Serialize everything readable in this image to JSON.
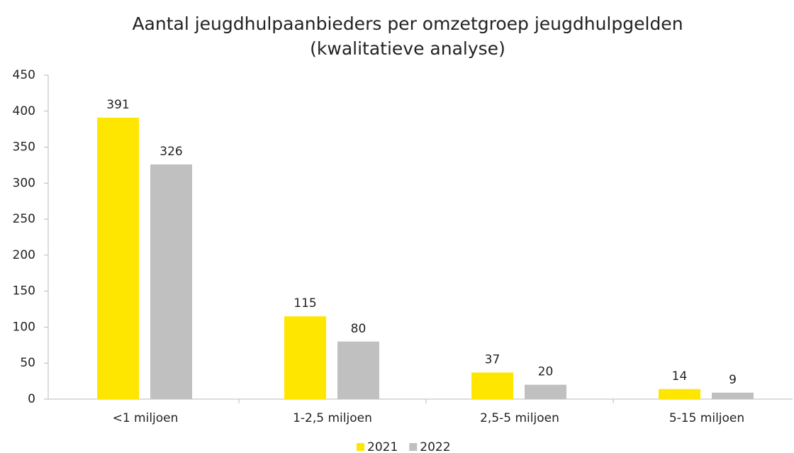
{
  "chart_data": {
    "type": "bar",
    "title": [
      "Aantal jeugdhulpaanbieders per omzetgroep jeugdhulpgelden",
      "(kwalitatieve analyse)"
    ],
    "categories": [
      "<1 miljoen",
      "1-2,5 miljoen",
      "2,5-5 miljoen",
      "5-15 miljoen"
    ],
    "series": [
      {
        "name": "2021",
        "color": "#ffe600",
        "values": [
          391,
          115,
          37,
          14
        ]
      },
      {
        "name": "2022",
        "color": "#c0c0c0",
        "values": [
          326,
          80,
          20,
          9
        ]
      }
    ],
    "ylim": [
      0,
      450
    ],
    "yticks": [
      0,
      50,
      100,
      150,
      200,
      250,
      300,
      350,
      400,
      450
    ],
    "grid": false,
    "legend": "bottom"
  }
}
